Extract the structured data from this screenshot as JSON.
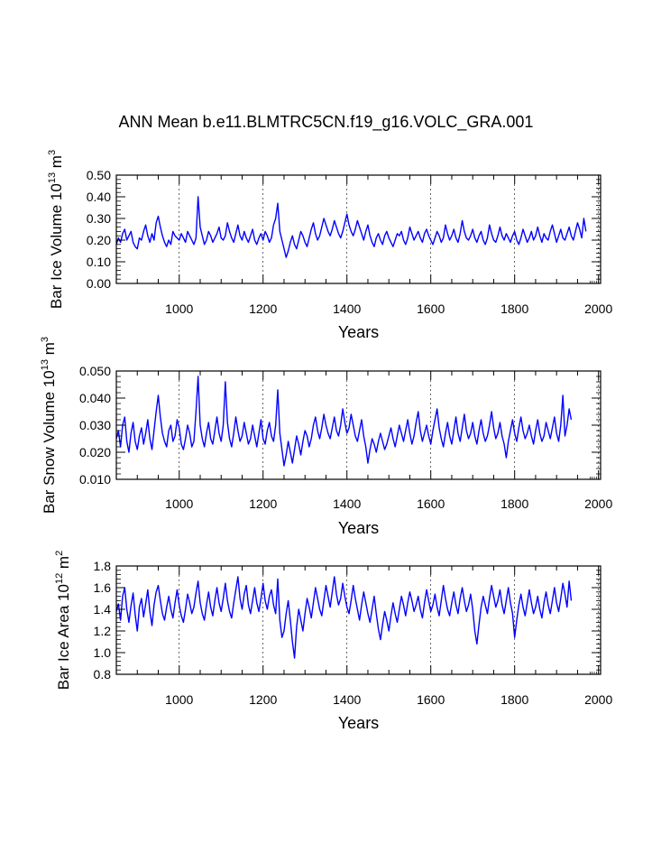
{
  "title": "ANN Mean b.e11.BLMTRC5CN.f19_g16.VOLC_GRA.001",
  "chart_data": [
    {
      "type": "line",
      "ylabel_main": "Bar Ice Volume 10",
      "ylabel_exp": "13",
      "ylabel_unit": " m",
      "ylabel_unit_exp": "3",
      "xlabel": "Years",
      "xlim": [
        850,
        2005
      ],
      "ylim": [
        0.0,
        0.5
      ],
      "x_ticks": [
        "1000",
        "1200",
        "1400",
        "1600",
        "1800",
        "2000"
      ],
      "y_ticks": [
        "0.00",
        "0.10",
        "0.20",
        "0.30",
        "0.40",
        "0.50"
      ],
      "line_color": "#0000ff",
      "series": {
        "name": "Bar Ice Volume",
        "x_start": 850,
        "x_end": 2005,
        "step": 5,
        "values": [
          0.18,
          0.21,
          0.19,
          0.23,
          0.25,
          0.2,
          0.22,
          0.24,
          0.19,
          0.17,
          0.16,
          0.21,
          0.2,
          0.24,
          0.27,
          0.22,
          0.19,
          0.23,
          0.2,
          0.28,
          0.31,
          0.26,
          0.22,
          0.19,
          0.17,
          0.2,
          0.18,
          0.24,
          0.22,
          0.21,
          0.2,
          0.23,
          0.21,
          0.19,
          0.24,
          0.22,
          0.2,
          0.18,
          0.21,
          0.4,
          0.26,
          0.22,
          0.18,
          0.2,
          0.24,
          0.22,
          0.19,
          0.21,
          0.23,
          0.26,
          0.21,
          0.2,
          0.22,
          0.28,
          0.24,
          0.21,
          0.19,
          0.23,
          0.27,
          0.22,
          0.2,
          0.24,
          0.21,
          0.19,
          0.22,
          0.25,
          0.2,
          0.18,
          0.21,
          0.23,
          0.2,
          0.24,
          0.22,
          0.19,
          0.21,
          0.27,
          0.3,
          0.37,
          0.24,
          0.2,
          0.16,
          0.12,
          0.15,
          0.19,
          0.22,
          0.18,
          0.16,
          0.2,
          0.24,
          0.22,
          0.19,
          0.17,
          0.21,
          0.25,
          0.28,
          0.23,
          0.2,
          0.22,
          0.26,
          0.3,
          0.27,
          0.24,
          0.22,
          0.25,
          0.29,
          0.26,
          0.23,
          0.21,
          0.24,
          0.28,
          0.32,
          0.27,
          0.24,
          0.22,
          0.25,
          0.29,
          0.26,
          0.23,
          0.2,
          0.24,
          0.27,
          0.22,
          0.19,
          0.17,
          0.21,
          0.23,
          0.2,
          0.18,
          0.22,
          0.24,
          0.21,
          0.19,
          0.17,
          0.2,
          0.23,
          0.22,
          0.24,
          0.2,
          0.18,
          0.21,
          0.26,
          0.23,
          0.2,
          0.22,
          0.24,
          0.21,
          0.19,
          0.23,
          0.25,
          0.22,
          0.2,
          0.18,
          0.21,
          0.24,
          0.22,
          0.19,
          0.21,
          0.27,
          0.23,
          0.2,
          0.22,
          0.25,
          0.21,
          0.19,
          0.23,
          0.29,
          0.24,
          0.21,
          0.2,
          0.22,
          0.25,
          0.21,
          0.19,
          0.22,
          0.24,
          0.2,
          0.18,
          0.21,
          0.27,
          0.23,
          0.2,
          0.19,
          0.22,
          0.26,
          0.22,
          0.2,
          0.23,
          0.21,
          0.19,
          0.22,
          0.24,
          0.2,
          0.18,
          0.21,
          0.25,
          0.22,
          0.19,
          0.21,
          0.24,
          0.2,
          0.22,
          0.26,
          0.22,
          0.19,
          0.23,
          0.21,
          0.2,
          0.24,
          0.27,
          0.23,
          0.19,
          0.22,
          0.25,
          0.21,
          0.2,
          0.23,
          0.26,
          0.22,
          0.2,
          0.24,
          0.28,
          0.25,
          0.21,
          0.3,
          0.24
        ]
      }
    },
    {
      "type": "line",
      "ylabel_main": "Bar Snow Volume 10",
      "ylabel_exp": "13",
      "ylabel_unit": " m",
      "ylabel_unit_exp": "3",
      "xlabel": "Years",
      "xlim": [
        850,
        2005
      ],
      "ylim": [
        0.01,
        0.05
      ],
      "x_ticks": [
        "1000",
        "1200",
        "1400",
        "1600",
        "1800",
        "2000"
      ],
      "y_ticks": [
        "0.010",
        "0.020",
        "0.030",
        "0.040",
        "0.050"
      ],
      "line_color": "#0000ff",
      "series": {
        "name": "Bar Snow Volume",
        "x_start": 850,
        "x_end": 2005,
        "step": 5,
        "values": [
          0.025,
          0.028,
          0.022,
          0.03,
          0.033,
          0.024,
          0.02,
          0.027,
          0.031,
          0.024,
          0.021,
          0.026,
          0.029,
          0.023,
          0.027,
          0.032,
          0.025,
          0.021,
          0.028,
          0.035,
          0.041,
          0.033,
          0.027,
          0.024,
          0.022,
          0.028,
          0.03,
          0.024,
          0.026,
          0.032,
          0.029,
          0.023,
          0.021,
          0.025,
          0.03,
          0.027,
          0.022,
          0.024,
          0.035,
          0.048,
          0.03,
          0.025,
          0.022,
          0.027,
          0.031,
          0.025,
          0.023,
          0.028,
          0.033,
          0.027,
          0.024,
          0.03,
          0.046,
          0.031,
          0.025,
          0.022,
          0.027,
          0.033,
          0.028,
          0.024,
          0.026,
          0.031,
          0.027,
          0.023,
          0.025,
          0.03,
          0.026,
          0.022,
          0.027,
          0.032,
          0.025,
          0.023,
          0.028,
          0.031,
          0.026,
          0.024,
          0.03,
          0.043,
          0.027,
          0.021,
          0.015,
          0.019,
          0.024,
          0.02,
          0.016,
          0.021,
          0.026,
          0.023,
          0.019,
          0.024,
          0.028,
          0.026,
          0.022,
          0.025,
          0.03,
          0.033,
          0.028,
          0.025,
          0.029,
          0.034,
          0.03,
          0.027,
          0.025,
          0.029,
          0.033,
          0.028,
          0.026,
          0.03,
          0.036,
          0.031,
          0.027,
          0.029,
          0.034,
          0.03,
          0.026,
          0.024,
          0.028,
          0.032,
          0.026,
          0.022,
          0.016,
          0.021,
          0.025,
          0.023,
          0.02,
          0.024,
          0.027,
          0.024,
          0.021,
          0.023,
          0.026,
          0.029,
          0.025,
          0.022,
          0.026,
          0.03,
          0.027,
          0.024,
          0.028,
          0.032,
          0.027,
          0.023,
          0.026,
          0.031,
          0.035,
          0.028,
          0.024,
          0.027,
          0.03,
          0.026,
          0.023,
          0.028,
          0.032,
          0.036,
          0.029,
          0.025,
          0.022,
          0.027,
          0.031,
          0.026,
          0.023,
          0.028,
          0.033,
          0.027,
          0.024,
          0.029,
          0.034,
          0.028,
          0.025,
          0.027,
          0.031,
          0.026,
          0.023,
          0.028,
          0.032,
          0.027,
          0.024,
          0.026,
          0.03,
          0.035,
          0.029,
          0.025,
          0.027,
          0.031,
          0.026,
          0.023,
          0.018,
          0.024,
          0.028,
          0.032,
          0.027,
          0.024,
          0.029,
          0.033,
          0.028,
          0.025,
          0.027,
          0.03,
          0.026,
          0.023,
          0.028,
          0.032,
          0.027,
          0.024,
          0.026,
          0.031,
          0.028,
          0.025,
          0.029,
          0.033,
          0.027,
          0.024,
          0.03,
          0.041,
          0.026,
          0.03,
          0.036,
          0.032
        ]
      }
    },
    {
      "type": "line",
      "ylabel_main": "Bar Ice Area 10",
      "ylabel_exp": "12",
      "ylabel_unit": " m",
      "ylabel_unit_exp": "2",
      "xlabel": "Years",
      "xlim": [
        850,
        2005
      ],
      "ylim": [
        0.8,
        1.8
      ],
      "x_ticks": [
        "1000",
        "1200",
        "1400",
        "1600",
        "1800",
        "2000"
      ],
      "y_ticks": [
        "0.8",
        "1.0",
        "1.2",
        "1.4",
        "1.6",
        "1.8"
      ],
      "line_color": "#0000ff",
      "series": {
        "name": "Bar Ice Area",
        "x_start": 850,
        "x_end": 2005,
        "step": 5,
        "values": [
          1.38,
          1.45,
          1.3,
          1.52,
          1.6,
          1.4,
          1.28,
          1.43,
          1.55,
          1.35,
          1.2,
          1.42,
          1.5,
          1.33,
          1.45,
          1.58,
          1.38,
          1.25,
          1.44,
          1.56,
          1.62,
          1.48,
          1.36,
          1.3,
          1.42,
          1.52,
          1.4,
          1.32,
          1.46,
          1.58,
          1.44,
          1.34,
          1.28,
          1.4,
          1.54,
          1.46,
          1.36,
          1.42,
          1.55,
          1.66,
          1.46,
          1.36,
          1.3,
          1.44,
          1.56,
          1.42,
          1.34,
          1.48,
          1.6,
          1.46,
          1.38,
          1.5,
          1.64,
          1.48,
          1.38,
          1.32,
          1.46,
          1.58,
          1.7,
          1.5,
          1.4,
          1.54,
          1.62,
          1.44,
          1.36,
          1.48,
          1.6,
          1.46,
          1.38,
          1.5,
          1.64,
          1.48,
          1.4,
          1.52,
          1.58,
          1.44,
          1.36,
          1.68,
          1.3,
          1.14,
          1.2,
          1.36,
          1.48,
          1.3,
          1.1,
          0.95,
          1.24,
          1.4,
          1.3,
          1.2,
          1.36,
          1.5,
          1.42,
          1.32,
          1.46,
          1.6,
          1.5,
          1.4,
          1.34,
          1.48,
          1.62,
          1.52,
          1.42,
          1.56,
          1.7,
          1.54,
          1.44,
          1.5,
          1.64,
          1.52,
          1.42,
          1.36,
          1.48,
          1.62,
          1.5,
          1.4,
          1.3,
          1.44,
          1.56,
          1.46,
          1.36,
          1.28,
          1.4,
          1.52,
          1.36,
          1.22,
          1.12,
          1.26,
          1.38,
          1.3,
          1.2,
          1.34,
          1.46,
          1.36,
          1.28,
          1.4,
          1.52,
          1.44,
          1.34,
          1.46,
          1.56,
          1.48,
          1.38,
          1.44,
          1.52,
          1.4,
          1.32,
          1.46,
          1.58,
          1.48,
          1.38,
          1.44,
          1.54,
          1.42,
          1.34,
          1.48,
          1.62,
          1.5,
          1.4,
          1.34,
          1.46,
          1.56,
          1.44,
          1.36,
          1.5,
          1.6,
          1.48,
          1.38,
          1.44,
          1.54,
          1.4,
          1.2,
          1.08,
          1.26,
          1.42,
          1.52,
          1.44,
          1.36,
          1.5,
          1.62,
          1.52,
          1.42,
          1.48,
          1.58,
          1.44,
          1.36,
          1.48,
          1.6,
          1.46,
          1.36,
          1.14,
          1.3,
          1.44,
          1.54,
          1.42,
          1.34,
          1.46,
          1.58,
          1.46,
          1.36,
          1.42,
          1.52,
          1.4,
          1.32,
          1.46,
          1.56,
          1.44,
          1.36,
          1.48,
          1.6,
          1.46,
          1.38,
          1.5,
          1.64,
          1.54,
          1.42,
          1.66,
          1.48
        ]
      }
    }
  ]
}
